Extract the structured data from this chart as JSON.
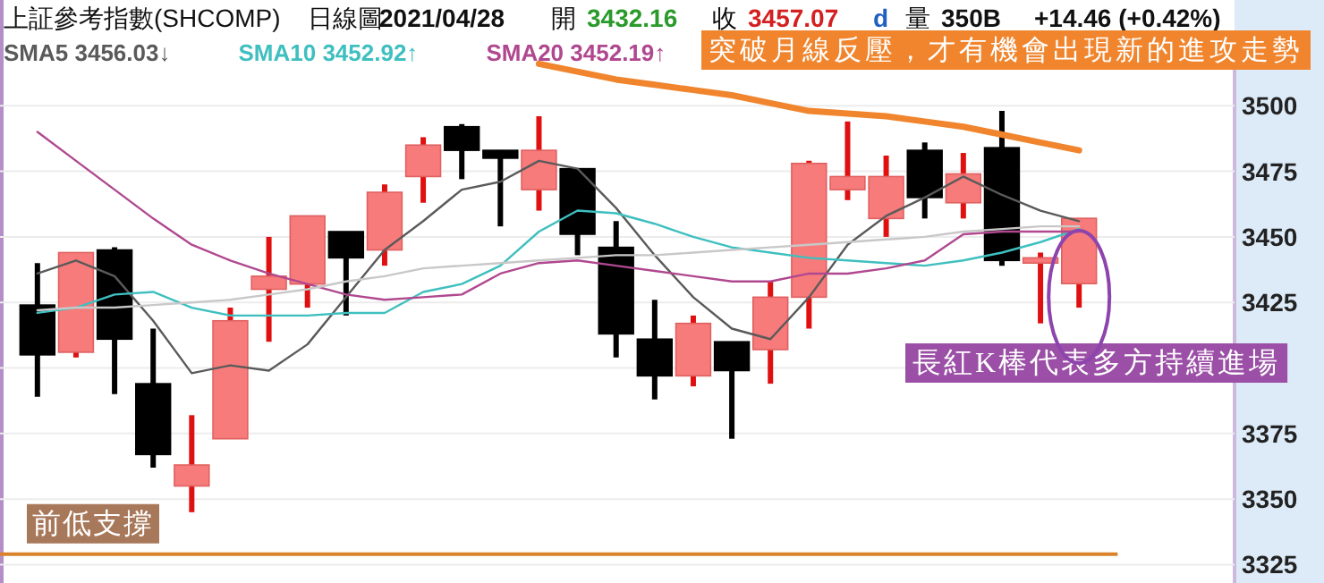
{
  "chart_data": {
    "type": "candlestick",
    "title": "上証參考指數(SHCOMP)",
    "annotations": [
      "日線圖",
      "2021/04/28",
      "開",
      "3432.16",
      "收",
      "3457.07",
      "d",
      "量",
      "350B",
      "+14.46 (+0.42%)",
      "突破月線反壓，才有機會出現新的進攻走勢",
      "長紅K棒代表多方持續進場"
    ],
    "categories": [
      null,
      null,
      null,
      null,
      null,
      null,
      null,
      null,
      null,
      null,
      null,
      null,
      null,
      null,
      null,
      null,
      null,
      null,
      null,
      null,
      null,
      null,
      null,
      null,
      null,
      null,
      null,
      null
    ],
    "ohlc": [
      [
        3424,
        3440,
        3389,
        3405
      ],
      [
        3406,
        3444,
        3404,
        3444
      ],
      [
        3445,
        3446,
        3390,
        3411
      ],
      [
        3394,
        3415,
        3362,
        3367
      ],
      [
        3355,
        3382,
        3345,
        3363
      ],
      [
        3373,
        3423,
        3373,
        3418
      ],
      [
        3430,
        3450,
        3410,
        3435
      ],
      [
        3432,
        3458,
        3423,
        3458
      ],
      [
        3452,
        3452,
        3420,
        3442
      ],
      [
        3445,
        3470,
        3439,
        3467
      ],
      [
        3473,
        3488,
        3463,
        3485
      ],
      [
        3492,
        3493,
        3472,
        3483
      ],
      [
        3483,
        3483,
        3454,
        3480
      ],
      [
        3468,
        3496,
        3460,
        3483
      ],
      [
        3476,
        3476,
        3443,
        3451
      ],
      [
        3446,
        3456,
        3404,
        3413
      ],
      [
        3411,
        3426,
        3388,
        3397
      ],
      [
        3397,
        3420,
        3393,
        3417
      ],
      [
        3410,
        3410,
        3373,
        3399
      ],
      [
        3407,
        3433,
        3394,
        3427
      ],
      [
        3427,
        3479,
        3415,
        3478
      ],
      [
        3468,
        3494,
        3464,
        3473
      ],
      [
        3457,
        3481,
        3450,
        3473
      ],
      [
        3483,
        3486,
        3457,
        3465
      ],
      [
        3463,
        3482,
        3457,
        3474
      ],
      [
        3484,
        3498,
        3439,
        3441
      ],
      [
        3440,
        3444,
        3417,
        3442
      ],
      [
        3432.16,
        3457.07,
        3423,
        3457.07
      ]
    ],
    "series": [
      {
        "name": "SMA5 3456.03↓",
        "type": "line",
        "color": "#5a5a5a",
        "values": [
          3436,
          3441,
          3435,
          3418,
          3398,
          3401,
          3399,
          3409,
          3427,
          3445,
          3456,
          3468,
          3471,
          3479,
          3476,
          3461,
          3443,
          3427,
          3415,
          3411,
          3427,
          3447,
          3458,
          3465,
          3473,
          3466,
          3460,
          3456
        ]
      },
      {
        "name": "SMA10 3452.92↑",
        "type": "line",
        "color": "#3fbfbf",
        "values": [
          3421,
          3423,
          3428,
          3429,
          3423,
          3420,
          3420,
          3420,
          3421,
          3421,
          3429,
          3432,
          3439,
          3452,
          3460,
          3459,
          3455,
          3450,
          3446,
          3444,
          3442,
          3441,
          3440,
          3439,
          3441,
          3444,
          3448,
          3453
        ]
      },
      {
        "name": "SMA20 3452.19↑",
        "type": "line",
        "color": "#b0488f",
        "values": [
          3490,
          3479,
          3468,
          3457,
          3447,
          3441,
          3436,
          3432,
          3428,
          3426,
          3427,
          3428,
          3436,
          3440,
          3441,
          3439,
          3437,
          3435,
          3433,
          3433,
          3436,
          3436,
          3438,
          3441,
          3451,
          3452,
          3452,
          3452
        ]
      },
      {
        "type": "line",
        "color": "#c8c8c8",
        "values": [
          3422,
          3423,
          3423,
          3424,
          3425,
          3426,
          3428,
          3430,
          3433,
          3435,
          3438,
          3439,
          3440,
          3441,
          3442,
          3443,
          3443,
          3444,
          3445,
          3446,
          3447,
          3448,
          3449,
          3450,
          3452,
          3453,
          3454,
          3454
        ]
      },
      {
        "type": "line",
        "color": "#f0852d",
        "values": [
          null,
          null,
          null,
          null,
          null,
          null,
          null,
          null,
          null,
          null,
          null,
          null,
          null,
          3516,
          3513,
          3510,
          3508,
          3506,
          3504,
          3501,
          3498,
          3497,
          3496,
          3494,
          3492,
          3489,
          3486,
          3483
        ]
      }
    ],
    "ylim": [
      3318,
      3526
    ],
    "yticks": [
      3325,
      3350,
      3375,
      {
        "value": 3400,
        "label": null
      },
      3425,
      3450,
      3475,
      3500
    ],
    "grid": "y",
    "legend": "top left",
    "ref_lines": [
      {
        "axis": "y",
        "value": 3329,
        "label": "前低支撐",
        "color": "#d9822b"
      }
    ]
  }
}
